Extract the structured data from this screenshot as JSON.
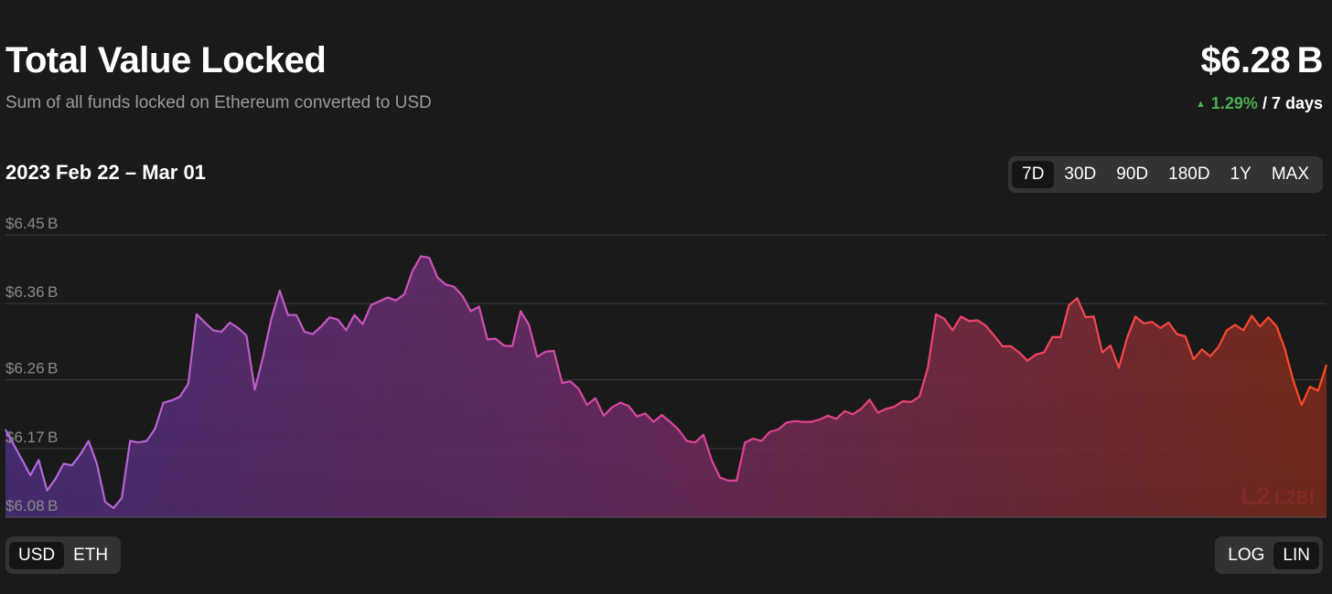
{
  "header": {
    "title": "Total Value Locked",
    "subtitle": "Sum of all funds locked on Ethereum converted to USD",
    "value": "$6.28 B",
    "change_pct": "1.29%",
    "change_period": "/ 7 days",
    "date_range": "2023 Feb 22 – Mar 01"
  },
  "range_options": [
    {
      "label": "7D",
      "active": true
    },
    {
      "label": "30D",
      "active": false
    },
    {
      "label": "90D",
      "active": false
    },
    {
      "label": "180D",
      "active": false
    },
    {
      "label": "1Y",
      "active": false
    },
    {
      "label": "MAX",
      "active": false
    }
  ],
  "unit_options": [
    {
      "label": "USD",
      "active": true
    },
    {
      "label": "ETH",
      "active": false
    }
  ],
  "scale_options": [
    {
      "label": "LOG",
      "active": false
    },
    {
      "label": "LIN",
      "active": true
    }
  ],
  "watermark": "L2BEAT",
  "colors": {
    "background": "#1a1a1a",
    "positive": "#4caf50",
    "line_start": "#b06ae0",
    "line_mid": "#e0409a",
    "line_end": "#ff4a20",
    "grid": "#3a3a3a"
  },
  "chart_data": {
    "type": "area",
    "x_start": "2023-02-22",
    "x_end": "2023-03-01",
    "y_ticks": [
      "$6.08 B",
      "$6.17 B",
      "$6.26 B",
      "$6.36 B",
      "$6.45 B"
    ],
    "ylim": [
      6.08,
      6.45
    ],
    "grid": true,
    "values": [
      6.195,
      6.175,
      6.155,
      6.135,
      6.155,
      6.115,
      6.13,
      6.15,
      6.148,
      6.162,
      6.18,
      6.15,
      6.1,
      6.092,
      6.105,
      6.18,
      6.178,
      6.18,
      6.196,
      6.23,
      6.233,
      6.238,
      6.255,
      6.346,
      6.335,
      6.325,
      6.323,
      6.335,
      6.328,
      6.318,
      6.247,
      6.29,
      6.34,
      6.377,
      6.345,
      6.345,
      6.323,
      6.32,
      6.33,
      6.342,
      6.339,
      6.325,
      6.345,
      6.333,
      6.358,
      6.363,
      6.368,
      6.364,
      6.372,
      6.403,
      6.422,
      6.42,
      6.394,
      6.385,
      6.382,
      6.37,
      6.35,
      6.356,
      6.313,
      6.314,
      6.305,
      6.304,
      6.35,
      6.332,
      6.29,
      6.297,
      6.298,
      6.256,
      6.258,
      6.248,
      6.227,
      6.236,
      6.213,
      6.224,
      6.23,
      6.226,
      6.212,
      6.216,
      6.205,
      6.214,
      6.205,
      6.195,
      6.18,
      6.178,
      6.188,
      6.155,
      6.132,
      6.128,
      6.128,
      6.178,
      6.183,
      6.18,
      6.192,
      6.195,
      6.204,
      6.206,
      6.205,
      6.205,
      6.208,
      6.213,
      6.209,
      6.219,
      6.215,
      6.222,
      6.234,
      6.217,
      6.222,
      6.225,
      6.232,
      6.231,
      6.238,
      6.275,
      6.346,
      6.34,
      6.325,
      6.343,
      6.337,
      6.338,
      6.331,
      6.318,
      6.304,
      6.304,
      6.296,
      6.285,
      6.293,
      6.296,
      6.316,
      6.316,
      6.358,
      6.367,
      6.342,
      6.343,
      6.296,
      6.305,
      6.276,
      6.315,
      6.343,
      6.334,
      6.336,
      6.328,
      6.335,
      6.32,
      6.317,
      6.287,
      6.3,
      6.291,
      6.303,
      6.325,
      6.332,
      6.325,
      6.344,
      6.33,
      6.342,
      6.33,
      6.3,
      6.259,
      6.227,
      6.251,
      6.246,
      6.28
    ]
  }
}
